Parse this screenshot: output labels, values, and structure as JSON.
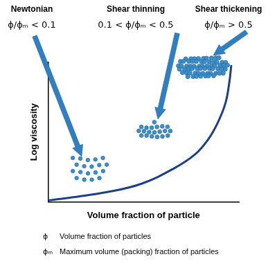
{
  "chart_data": {
    "type": "line",
    "x_label": "Volume fraction of particle",
    "y_label": "Log viscosity",
    "x": [
      0,
      0.13,
      0.31,
      0.49,
      0.66,
      0.77,
      0.84,
      0.89,
      0.93,
      0.95,
      0.96
    ],
    "values": [
      0.01,
      0.033,
      0.07,
      0.13,
      0.24,
      0.34,
      0.45,
      0.57,
      0.71,
      0.86,
      0.98
    ],
    "color": "#1b3f8b",
    "xlim": [
      0,
      1
    ],
    "ylim": [
      0,
      1
    ],
    "grid": false,
    "tick_labels": false,
    "annotations": [
      {
        "title": "Newtonian",
        "condition": "ϕ/ϕₘ < 0.1"
      },
      {
        "title": "Shear thinning",
        "condition": "0.1 < ϕ/ϕₘ < 0.5"
      },
      {
        "title": "Shear thickening",
        "condition": "ϕ/ϕₘ > 0.5"
      }
    ],
    "notes": [
      {
        "symbol": "ϕ",
        "text": "Volume fraction of particles"
      },
      {
        "symbol": "ϕₘ",
        "text": "Maximum volume (packing) fraction of particles"
      }
    ]
  }
}
